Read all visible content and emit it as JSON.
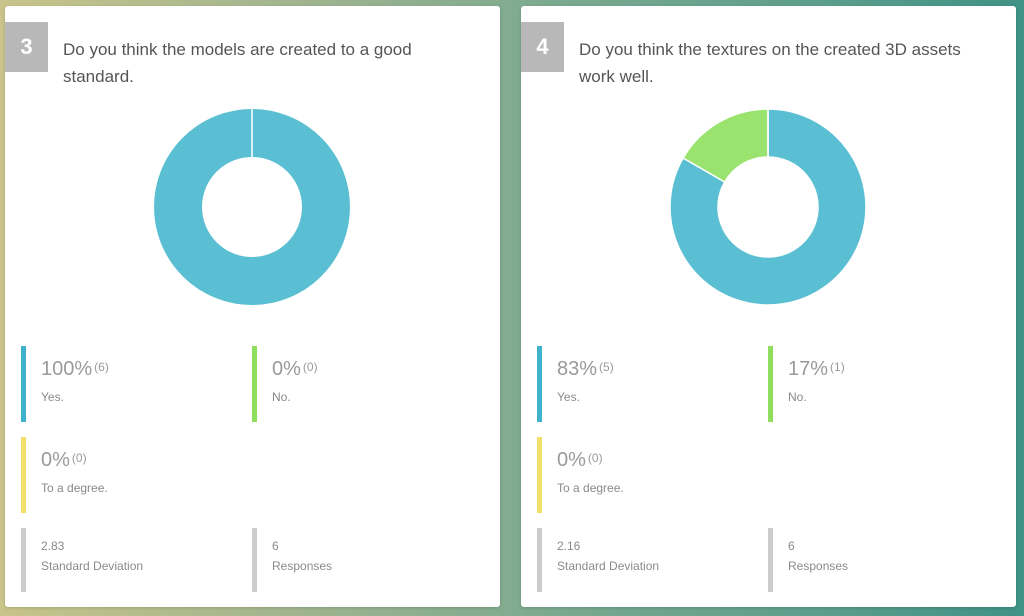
{
  "colors": {
    "yes": "#5bbfd3",
    "no": "#9be36f",
    "degree": "#f2e06a",
    "meta": "#cccccc"
  },
  "cards": [
    {
      "number": "3",
      "question": "Do you think the models are created to a good standard.",
      "stats": [
        {
          "pct": "100%",
          "count": "(6)",
          "label": "Yes."
        },
        {
          "pct": "0%",
          "count": "(0)",
          "label": "No."
        },
        {
          "pct": "0%",
          "count": "(0)",
          "label": "To a degree."
        }
      ],
      "std_dev": "2.83",
      "std_dev_label": "Standard Deviation",
      "responses": "6",
      "responses_label": "Responses"
    },
    {
      "number": "4",
      "question": "Do you think the textures on the created 3D assets work well.",
      "stats": [
        {
          "pct": "83%",
          "count": "(5)",
          "label": "Yes."
        },
        {
          "pct": "17%",
          "count": "(1)",
          "label": "No."
        },
        {
          "pct": "0%",
          "count": "(0)",
          "label": "To a degree."
        }
      ],
      "std_dev": "2.16",
      "std_dev_label": "Standard Deviation",
      "responses": "6",
      "responses_label": "Responses"
    }
  ],
  "chart_data": [
    {
      "type": "pie",
      "labels": [
        "Yes.",
        "No.",
        "To a degree."
      ],
      "values": [
        6,
        0,
        0
      ],
      "colors": [
        "#5bbfd3",
        "#9be36f",
        "#f2e06a"
      ]
    },
    {
      "type": "pie",
      "labels": [
        "Yes.",
        "No.",
        "To a degree."
      ],
      "values": [
        5,
        1,
        0
      ],
      "colors": [
        "#5bbfd3",
        "#9be36f",
        "#f2e06a"
      ]
    }
  ]
}
